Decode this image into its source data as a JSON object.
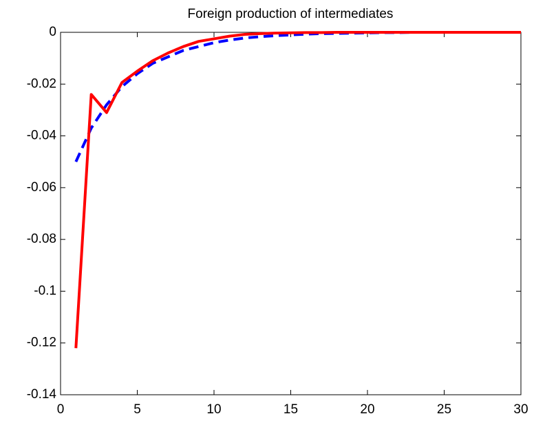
{
  "chart_data": {
    "type": "line",
    "title": "Foreign production of intermediates",
    "x": [
      1,
      2,
      3,
      4,
      5,
      6,
      7,
      8,
      9,
      10,
      11,
      12,
      13,
      14,
      15,
      16,
      17,
      18,
      19,
      20,
      21,
      22,
      23,
      24,
      25,
      26,
      27,
      28,
      29,
      30
    ],
    "series": [
      {
        "color": "#0000ff",
        "style": "dashed",
        "values": [
          -0.05,
          -0.037,
          -0.028,
          -0.021,
          -0.016,
          -0.012,
          -0.0095,
          -0.007,
          -0.0055,
          -0.004,
          -0.003,
          -0.0022,
          -0.0017,
          -0.0013,
          -0.001,
          -0.0007,
          -0.0005,
          -0.0004,
          -0.0003,
          -0.0002,
          -0.0001,
          -0.0001,
          0,
          0,
          0,
          0,
          0,
          0,
          0,
          0
        ]
      },
      {
        "color": "#ff0000",
        "style": "solid",
        "values": [
          -0.122,
          -0.024,
          -0.031,
          -0.0194,
          -0.015,
          -0.011,
          -0.008,
          -0.0055,
          -0.0035,
          -0.0025,
          -0.0015,
          -0.0008,
          -0.0005,
          -0.0003,
          -0.0002,
          -0.0001,
          -0.0001,
          0,
          0,
          0,
          0,
          0,
          0,
          0,
          0,
          0,
          0,
          0,
          0,
          0
        ]
      }
    ],
    "xlim": [
      0,
      30
    ],
    "xticks": [
      0,
      5,
      10,
      15,
      20,
      25,
      30
    ],
    "ylim": [
      -0.14,
      0
    ],
    "yticks": [
      0,
      -0.02,
      -0.04,
      -0.06,
      -0.08,
      -0.1,
      -0.12,
      -0.14
    ]
  }
}
